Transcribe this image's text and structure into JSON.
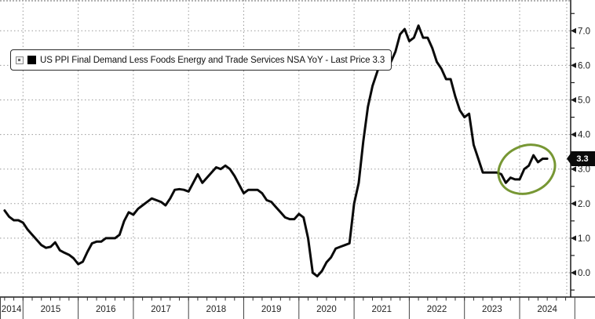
{
  "legend": {
    "label": "US PPI Final Demand Less Foods Energy and Trade Services NSA YoY - Last Price 3.3"
  },
  "y_axis": {
    "tick_labels": [
      "7.0",
      "6.0",
      "5.0",
      "4.0",
      "3.0",
      "2.0",
      "1.0",
      "0.0"
    ],
    "tick_values": [
      7,
      6,
      5,
      4,
      3,
      2,
      1,
      0
    ],
    "last_price_badge": "3.3"
  },
  "x_axis": {
    "years": [
      "2014",
      "2015",
      "2016",
      "2017",
      "2018",
      "2019",
      "2020",
      "2021",
      "2022",
      "2023",
      "2024"
    ]
  },
  "highlight": {
    "type": "ellipse",
    "color": "#6b8e23",
    "note": "circles the late-2023 to mid-2024 rebound up to 3.3"
  },
  "colors": {
    "line": "#0a0a0a",
    "grid": "#9a9a9a",
    "axis": "#1a1a1a",
    "label": "#222222"
  },
  "chart_data": {
    "type": "line",
    "title": "US PPI Final Demand Less Foods Energy and Trade Services NSA YoY",
    "last_price": 3.3,
    "frequency": "monthly",
    "x_start": "2014-09",
    "x_end": "2024-07",
    "ylim": [
      -0.7,
      7.9
    ],
    "y_ticks": [
      0,
      1,
      2,
      3,
      4,
      5,
      6,
      7
    ],
    "grid": true,
    "legend_position": "top-left",
    "series": [
      {
        "name": "US PPI Final Demand Less Foods Energy and Trade Services NSA YoY",
        "color": "#0a0a0a",
        "values": [
          1.8,
          1.62,
          1.52,
          1.52,
          1.45,
          1.25,
          1.1,
          0.95,
          0.8,
          0.72,
          0.75,
          0.88,
          0.65,
          0.58,
          0.52,
          0.42,
          0.25,
          0.32,
          0.6,
          0.85,
          0.9,
          0.9,
          1.0,
          1.0,
          1.0,
          1.1,
          1.5,
          1.75,
          1.68,
          1.85,
          1.95,
          2.05,
          2.15,
          2.1,
          2.05,
          1.95,
          2.15,
          2.4,
          2.42,
          2.4,
          2.35,
          2.6,
          2.85,
          2.6,
          2.75,
          2.9,
          3.05,
          3.0,
          3.1,
          3.0,
          2.8,
          2.55,
          2.3,
          2.4,
          2.4,
          2.4,
          2.3,
          2.1,
          2.05,
          1.9,
          1.75,
          1.6,
          1.55,
          1.55,
          1.7,
          1.6,
          1.0,
          0.0,
          -0.1,
          0.05,
          0.3,
          0.45,
          0.7,
          0.75,
          0.8,
          0.85,
          2.0,
          2.6,
          3.8,
          4.8,
          5.4,
          5.8,
          6.2,
          6.0,
          6.1,
          6.4,
          6.9,
          7.05,
          6.7,
          6.8,
          7.15,
          6.8,
          6.8,
          6.5,
          6.1,
          5.9,
          5.6,
          5.6,
          5.1,
          4.7,
          4.5,
          4.6,
          3.7,
          3.3,
          2.9,
          2.9,
          2.9,
          2.9,
          2.85,
          2.6,
          2.75,
          2.7,
          2.7,
          3.0,
          3.1,
          3.4,
          3.2,
          3.3,
          3.3
        ]
      }
    ]
  }
}
